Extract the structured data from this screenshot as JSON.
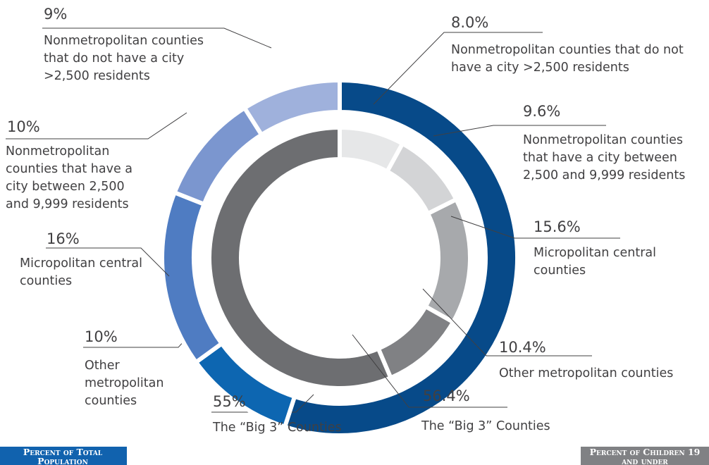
{
  "chart_data": {
    "type": "donut",
    "series": [
      {
        "name": "Percent of Total Population",
        "color": "#1162ae",
        "categories": [
          "The “Big 3” Counties",
          "Other metropolitan counties",
          "Micropolitan central counties",
          "Nonmetropolitan counties that have a city between 2,500 and 9,999 residents",
          "Nonmetropolitan counties that do not have a city >2,500 residents"
        ],
        "values": [
          55,
          10,
          16,
          10,
          9
        ],
        "value_labels": [
          "55%",
          "10%",
          "16%",
          "10%",
          "9%"
        ],
        "colors": [
          "#074a89",
          "#0d66b1",
          "#4f7cc2",
          "#7b96cf",
          "#9fb1dc"
        ]
      },
      {
        "name": "Percent of Children 19 and under",
        "color": "#808184",
        "categories": [
          "Nonmetropolitan counties that do not have a city >2,500 residents",
          "Nonmetropolitan counties that have a city between 2,500 and 9,999 residents",
          "Micropolitan central counties",
          "Other metropolitan counties",
          "The “Big 3” Counties"
        ],
        "values": [
          8.0,
          9.6,
          15.6,
          10.4,
          56.4
        ],
        "value_labels": [
          "8.0%",
          "9.6%",
          "15.6%",
          "10.4%",
          "56.4%"
        ],
        "colors": [
          "#e6e7e8",
          "#d3d4d6",
          "#a7a9ac",
          "#808184",
          "#6d6e71"
        ]
      }
    ]
  }
}
